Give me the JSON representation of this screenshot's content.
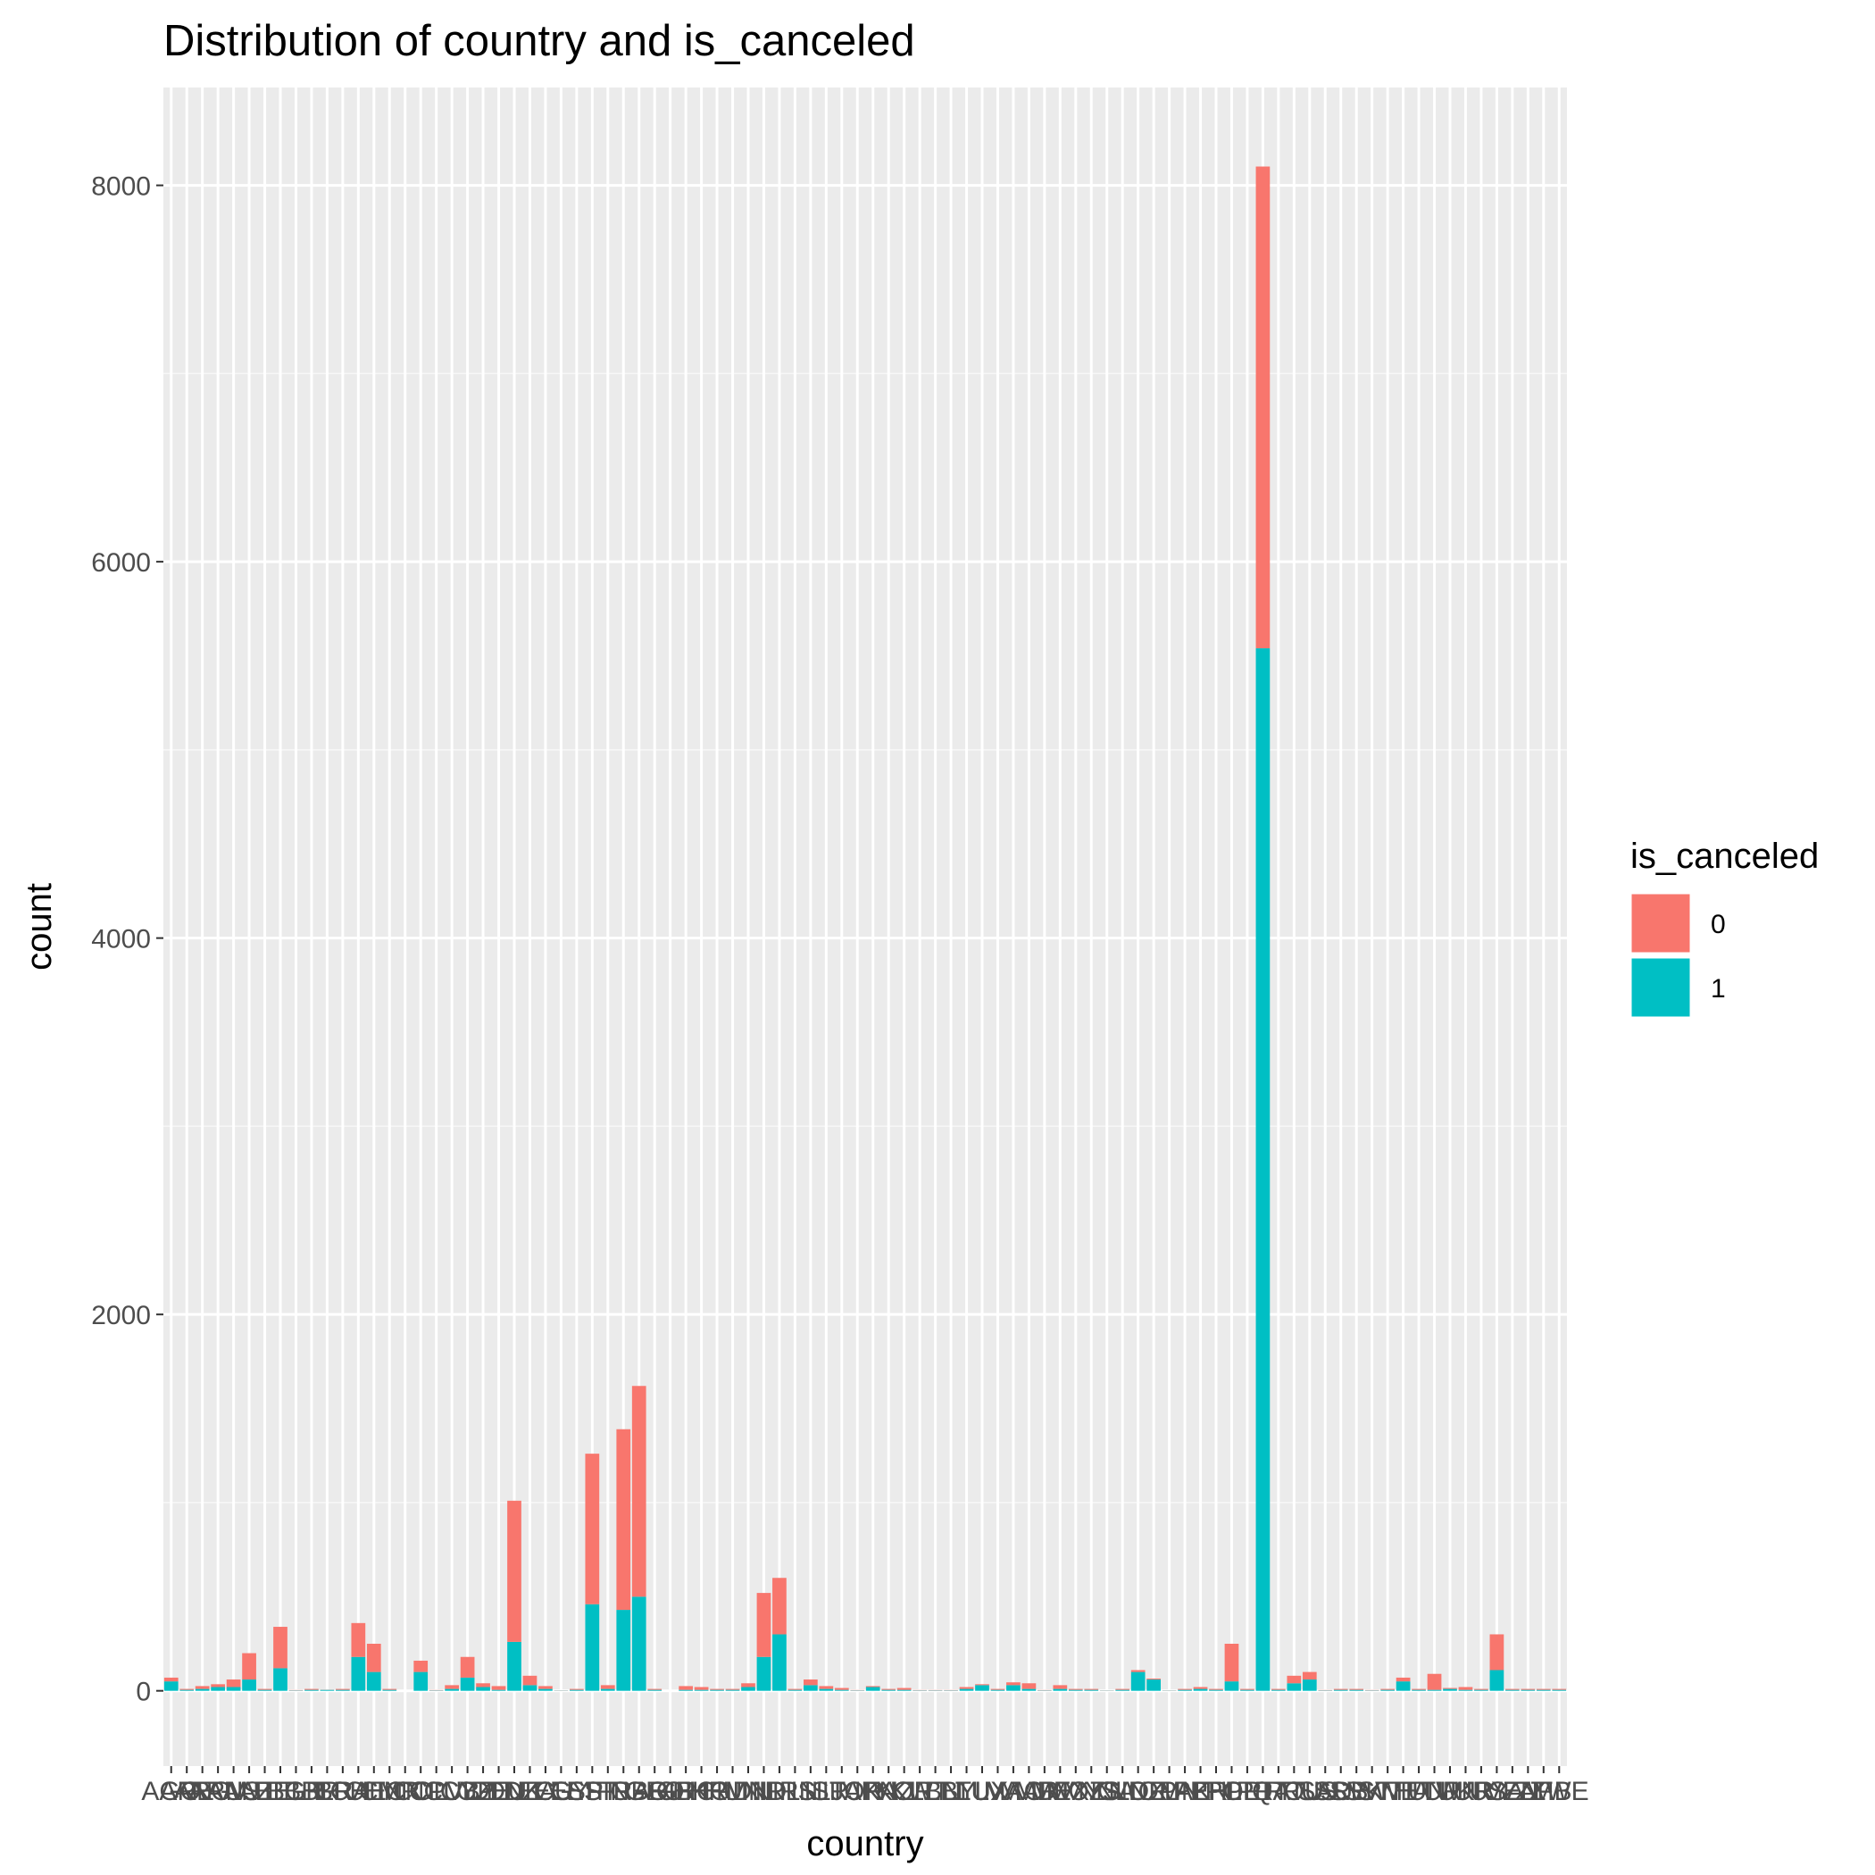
{
  "chart_data": {
    "type": "bar",
    "stacked": true,
    "title": "Distribution of country and is_canceled",
    "xlabel": "country",
    "ylabel": "count",
    "ylim": [
      -400,
      8520
    ],
    "yticks": [
      0,
      2000,
      4000,
      6000,
      8000
    ],
    "grid": true,
    "legend": {
      "title": "is_canceled",
      "position": "right"
    },
    "categories": [
      "AGO",
      "ARE",
      "ARG",
      "ARM",
      "AUS",
      "AUT",
      "AZE",
      "BEL",
      "BGR",
      "BHR",
      "BLR",
      "BRA",
      "CHE",
      "CHN",
      "CMR",
      "CN",
      "COL",
      "CPV",
      "CUB",
      "CYP",
      "CZE",
      "DEU",
      "DNK",
      "DZA",
      "ECU",
      "EGY",
      "ESP",
      "EST",
      "FIN",
      "FRA",
      "GBR",
      "GEO",
      "GIB",
      "GRC",
      "HKG",
      "HRV",
      "HUN",
      "IDN",
      "IND",
      "IRL",
      "IRN",
      "ISL",
      "ISR",
      "ITA",
      "JOR",
      "JPN",
      "KAZ",
      "KOR",
      "KWT",
      "LBN",
      "LBY",
      "LTU",
      "LUX",
      "LVA",
      "MAC",
      "MAR",
      "MDV",
      "MEX",
      "MOZ",
      "MYS",
      "NGA",
      "NLD",
      "NOR",
      "NZL",
      "OMN",
      "PAK",
      "PER",
      "PHL",
      "POL",
      "PRI",
      "PRT",
      "QAT",
      "ROU",
      "RUS",
      "SAU",
      "SRB",
      "SVK",
      "SVN",
      "SWE",
      "THA",
      "TUN",
      "TUR",
      "TWN",
      "UKR",
      "URY",
      "USA",
      "VEN",
      "ZAF",
      "ZMB",
      "ZWE"
    ],
    "series": [
      {
        "name": "0",
        "color": "#F8766D",
        "values": [
          20,
          5,
          15,
          15,
          40,
          140,
          5,
          220,
          2,
          5,
          1,
          5,
          180,
          150,
          5,
          0,
          60,
          2,
          20,
          110,
          20,
          20,
          750,
          50,
          15,
          1,
          5,
          800,
          20,
          960,
          1120,
          5,
          0,
          20,
          15,
          5,
          5,
          20,
          340,
          300,
          5,
          30,
          15,
          10,
          2,
          5,
          5,
          10,
          2,
          2,
          2,
          10,
          5,
          5,
          15,
          30,
          2,
          20,
          5,
          5,
          1,
          5,
          10,
          5,
          1,
          5,
          10,
          5,
          200,
          5,
          2560,
          5,
          40,
          40,
          2,
          5,
          5,
          2,
          5,
          20,
          5,
          85,
          5,
          15,
          5,
          190,
          5,
          5,
          5,
          5
        ]
      },
      {
        "name": "1",
        "color": "#00BFC4",
        "values": [
          50,
          5,
          10,
          20,
          20,
          60,
          5,
          120,
          2,
          5,
          5,
          5,
          180,
          100,
          5,
          0,
          100,
          2,
          10,
          70,
          20,
          5,
          260,
          30,
          10,
          1,
          5,
          460,
          10,
          430,
          500,
          5,
          0,
          5,
          5,
          5,
          5,
          20,
          180,
          300,
          5,
          30,
          10,
          5,
          2,
          20,
          5,
          5,
          2,
          2,
          2,
          10,
          30,
          5,
          30,
          10,
          2,
          10,
          5,
          5,
          1,
          5,
          100,
          60,
          1,
          5,
          10,
          5,
          50,
          5,
          5540,
          5,
          40,
          60,
          2,
          5,
          5,
          2,
          5,
          50,
          5,
          5,
          10,
          5,
          5,
          110,
          5,
          5,
          5,
          5
        ]
      }
    ]
  }
}
